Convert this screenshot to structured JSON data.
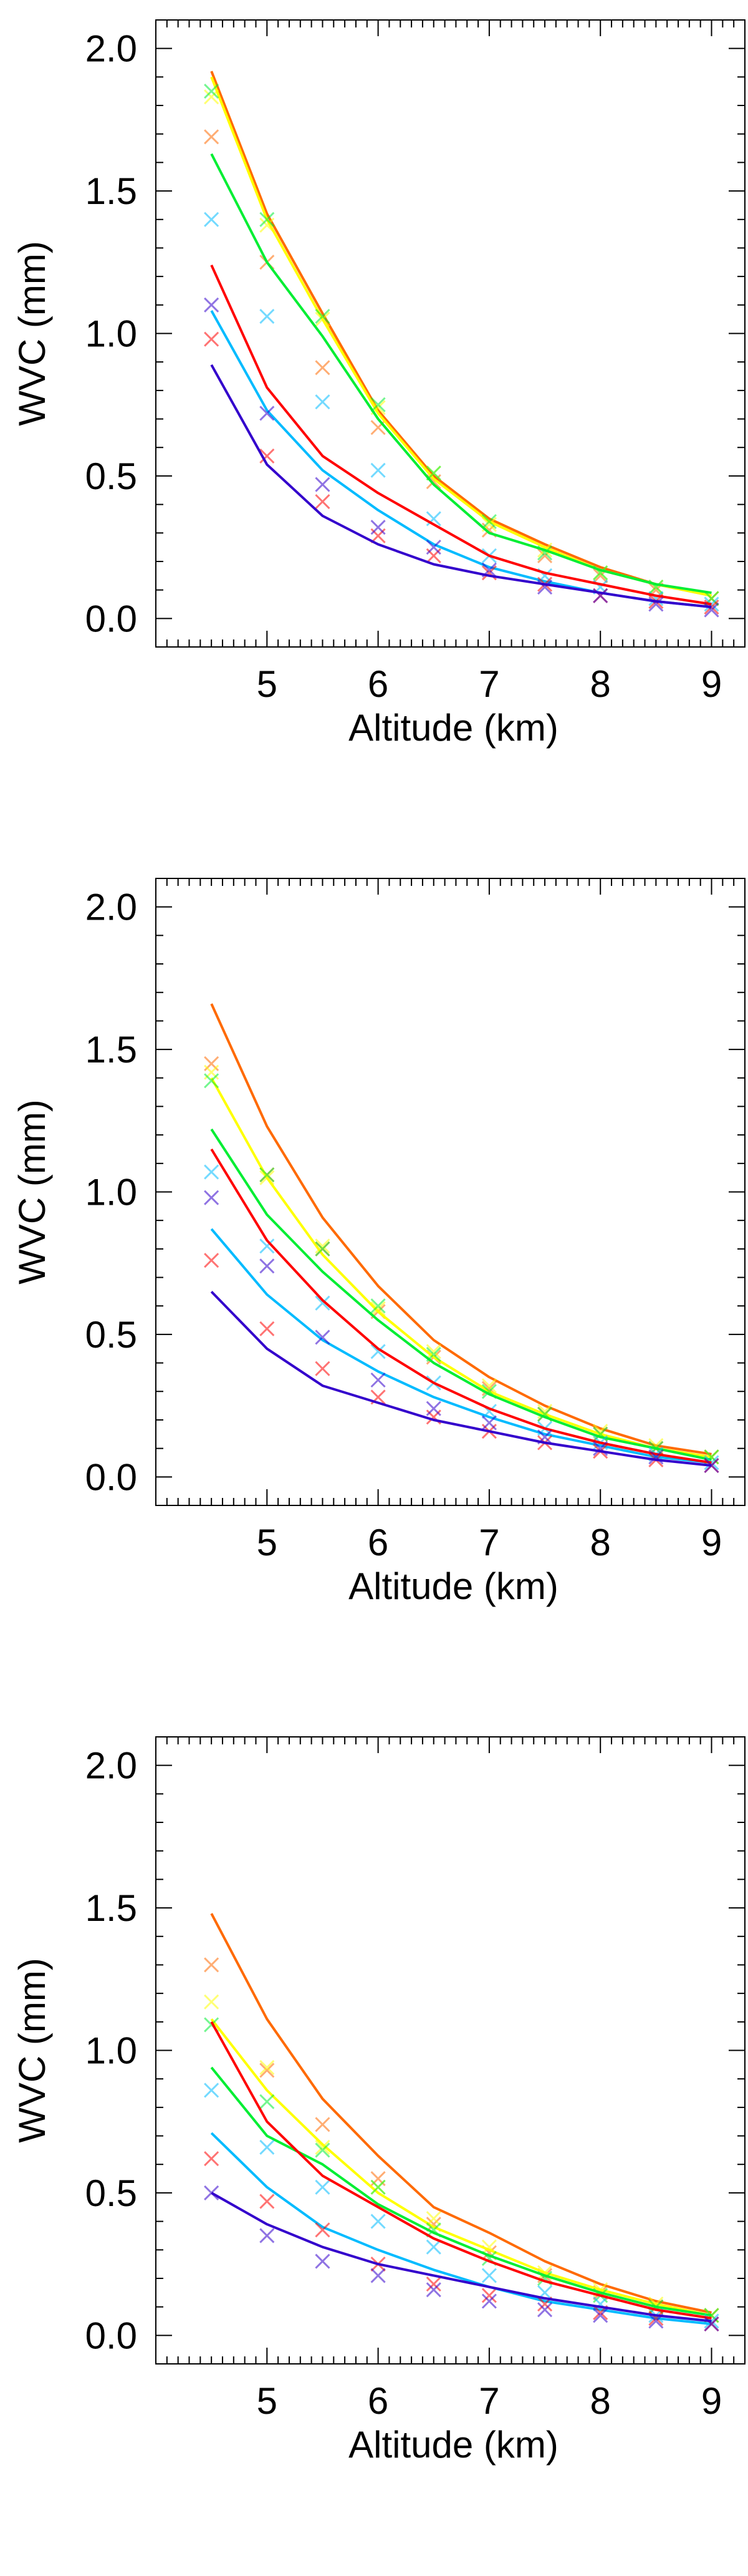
{
  "chart_data": [
    {
      "type": "line",
      "xlabel": "Altitude (km)",
      "ylabel": "WVC (mm)",
      "xlim": [
        4.0,
        9.3
      ],
      "ylim": [
        -0.1,
        2.1
      ],
      "xticks": [
        "5",
        "6",
        "7",
        "8",
        "9"
      ],
      "yticks": [
        "0.0",
        "0.5",
        "1.0",
        "1.5",
        "2.0"
      ],
      "x": [
        4.5,
        5.0,
        5.5,
        6.0,
        6.5,
        7.0,
        7.5,
        8.0,
        8.5,
        9.0
      ],
      "series": [
        {
          "name": "orange",
          "color": "#ff6a00",
          "line": [
            1.92,
            1.42,
            1.07,
            0.73,
            0.5,
            0.35,
            0.26,
            0.18,
            0.12,
            0.08
          ],
          "markers": [
            1.69,
            1.25,
            0.88,
            0.67,
            0.48,
            0.31,
            0.22,
            0.15,
            0.1,
            0.07
          ]
        },
        {
          "name": "yellow",
          "color": "#ffff00",
          "line": [
            1.9,
            1.4,
            1.05,
            0.72,
            0.49,
            0.34,
            0.25,
            0.17,
            0.12,
            0.08
          ],
          "markers": [
            1.83,
            1.38,
            1.05,
            0.74,
            0.51,
            0.33,
            0.24,
            0.16,
            0.11,
            0.07
          ]
        },
        {
          "name": "green",
          "color": "#00ee33",
          "line": [
            1.63,
            1.25,
            0.99,
            0.7,
            0.47,
            0.3,
            0.24,
            0.17,
            0.12,
            0.09
          ],
          "markers": [
            1.85,
            1.4,
            1.06,
            0.75,
            0.51,
            0.34,
            0.23,
            0.16,
            0.11,
            0.07
          ]
        },
        {
          "name": "cyan",
          "color": "#00bbff",
          "line": [
            1.08,
            0.73,
            0.52,
            0.38,
            0.26,
            0.18,
            0.13,
            0.09,
            0.06,
            0.04
          ],
          "markers": [
            1.4,
            1.06,
            0.76,
            0.52,
            0.35,
            0.22,
            0.15,
            0.11,
            0.07,
            0.05
          ]
        },
        {
          "name": "red",
          "color": "#ff0000",
          "line": [
            1.24,
            0.81,
            0.57,
            0.44,
            0.33,
            0.22,
            0.16,
            0.12,
            0.08,
            0.05
          ],
          "markers": [
            0.98,
            0.57,
            0.41,
            0.29,
            0.22,
            0.16,
            0.12,
            0.08,
            0.06,
            0.04
          ]
        },
        {
          "name": "blue",
          "color": "#3300cc",
          "line": [
            0.89,
            0.54,
            0.36,
            0.26,
            0.19,
            0.15,
            0.12,
            0.09,
            0.06,
            0.04
          ],
          "markers": [
            1.1,
            0.72,
            0.47,
            0.32,
            0.25,
            0.17,
            0.11,
            0.08,
            0.05,
            0.03
          ]
        }
      ]
    },
    {
      "type": "line",
      "xlabel": "Altitude (km)",
      "ylabel": "WVC (mm)",
      "xlim": [
        4.0,
        9.3
      ],
      "ylim": [
        -0.1,
        2.1
      ],
      "xticks": [
        "5",
        "6",
        "7",
        "8",
        "9"
      ],
      "yticks": [
        "0.0",
        "0.5",
        "1.0",
        "1.5",
        "2.0"
      ],
      "x": [
        4.5,
        5.0,
        5.5,
        6.0,
        6.5,
        7.0,
        7.5,
        8.0,
        8.5,
        9.0
      ],
      "series": [
        {
          "name": "orange",
          "color": "#ff6a00",
          "line": [
            1.66,
            1.23,
            0.91,
            0.67,
            0.48,
            0.35,
            0.25,
            0.17,
            0.11,
            0.08
          ],
          "markers": [
            1.45,
            1.06,
            0.8,
            0.58,
            0.42,
            0.31,
            0.22,
            0.15,
            0.1,
            0.07
          ]
        },
        {
          "name": "yellow",
          "color": "#ffff00",
          "line": [
            1.4,
            1.05,
            0.78,
            0.58,
            0.42,
            0.3,
            0.22,
            0.15,
            0.1,
            0.07
          ],
          "markers": [
            1.42,
            1.05,
            0.81,
            0.59,
            0.44,
            0.32,
            0.23,
            0.16,
            0.11,
            0.07
          ]
        },
        {
          "name": "green",
          "color": "#00ee33",
          "line": [
            1.22,
            0.92,
            0.72,
            0.55,
            0.4,
            0.29,
            0.21,
            0.14,
            0.1,
            0.06
          ],
          "markers": [
            1.39,
            1.06,
            0.8,
            0.6,
            0.43,
            0.3,
            0.22,
            0.15,
            0.1,
            0.07
          ]
        },
        {
          "name": "cyan",
          "color": "#00bbff",
          "line": [
            0.87,
            0.64,
            0.48,
            0.37,
            0.28,
            0.21,
            0.15,
            0.11,
            0.07,
            0.05
          ],
          "markers": [
            1.07,
            0.81,
            0.61,
            0.44,
            0.33,
            0.23,
            0.17,
            0.12,
            0.08,
            0.05
          ]
        },
        {
          "name": "red",
          "color": "#ff0000",
          "line": [
            1.15,
            0.83,
            0.62,
            0.45,
            0.33,
            0.24,
            0.17,
            0.12,
            0.08,
            0.05
          ],
          "markers": [
            0.76,
            0.52,
            0.38,
            0.28,
            0.21,
            0.16,
            0.12,
            0.09,
            0.06,
            0.04
          ]
        },
        {
          "name": "blue",
          "color": "#3300cc",
          "line": [
            0.65,
            0.45,
            0.32,
            0.26,
            0.2,
            0.16,
            0.12,
            0.09,
            0.06,
            0.04
          ],
          "markers": [
            0.98,
            0.74,
            0.49,
            0.34,
            0.24,
            0.19,
            0.14,
            0.1,
            0.07,
            0.04
          ]
        }
      ]
    },
    {
      "type": "line",
      "xlabel": "Altitude (km)",
      "ylabel": "WVC (mm)",
      "xlim": [
        4.0,
        9.3
      ],
      "ylim": [
        -0.1,
        2.1
      ],
      "xticks": [
        "5",
        "6",
        "7",
        "8",
        "9"
      ],
      "yticks": [
        "0.0",
        "0.5",
        "1.0",
        "1.5",
        "2.0"
      ],
      "x": [
        4.5,
        5.0,
        5.5,
        6.0,
        6.5,
        7.0,
        7.5,
        8.0,
        8.5,
        9.0
      ],
      "series": [
        {
          "name": "orange",
          "color": "#ff6a00",
          "line": [
            1.48,
            1.11,
            0.83,
            0.63,
            0.45,
            0.36,
            0.26,
            0.18,
            0.12,
            0.08
          ],
          "markers": [
            1.3,
            0.93,
            0.74,
            0.55,
            0.39,
            0.29,
            0.21,
            0.15,
            0.1,
            0.07
          ]
        },
        {
          "name": "yellow",
          "color": "#ffff00",
          "line": [
            1.11,
            0.86,
            0.67,
            0.5,
            0.38,
            0.3,
            0.22,
            0.16,
            0.11,
            0.07
          ],
          "markers": [
            1.17,
            0.94,
            0.66,
            0.52,
            0.41,
            0.31,
            0.22,
            0.16,
            0.11,
            0.07
          ]
        },
        {
          "name": "green",
          "color": "#00ee33",
          "line": [
            0.94,
            0.7,
            0.6,
            0.46,
            0.36,
            0.28,
            0.21,
            0.15,
            0.1,
            0.07
          ],
          "markers": [
            1.09,
            0.82,
            0.65,
            0.52,
            0.37,
            0.27,
            0.2,
            0.14,
            0.1,
            0.07
          ]
        },
        {
          "name": "cyan",
          "color": "#00bbff",
          "line": [
            0.71,
            0.52,
            0.38,
            0.3,
            0.23,
            0.17,
            0.12,
            0.09,
            0.06,
            0.04
          ],
          "markers": [
            0.86,
            0.66,
            0.52,
            0.4,
            0.31,
            0.21,
            0.15,
            0.11,
            0.07,
            0.05
          ]
        },
        {
          "name": "red",
          "color": "#ff0000",
          "line": [
            1.1,
            0.75,
            0.56,
            0.45,
            0.34,
            0.26,
            0.19,
            0.14,
            0.09,
            0.06
          ],
          "markers": [
            0.62,
            0.47,
            0.37,
            0.25,
            0.18,
            0.14,
            0.11,
            0.08,
            0.06,
            0.04
          ]
        },
        {
          "name": "blue",
          "color": "#3300cc",
          "line": [
            0.5,
            0.39,
            0.31,
            0.25,
            0.21,
            0.17,
            0.13,
            0.1,
            0.07,
            0.05
          ],
          "markers": [
            0.5,
            0.35,
            0.26,
            0.21,
            0.16,
            0.12,
            0.09,
            0.07,
            0.05,
            0.04
          ]
        }
      ]
    }
  ]
}
